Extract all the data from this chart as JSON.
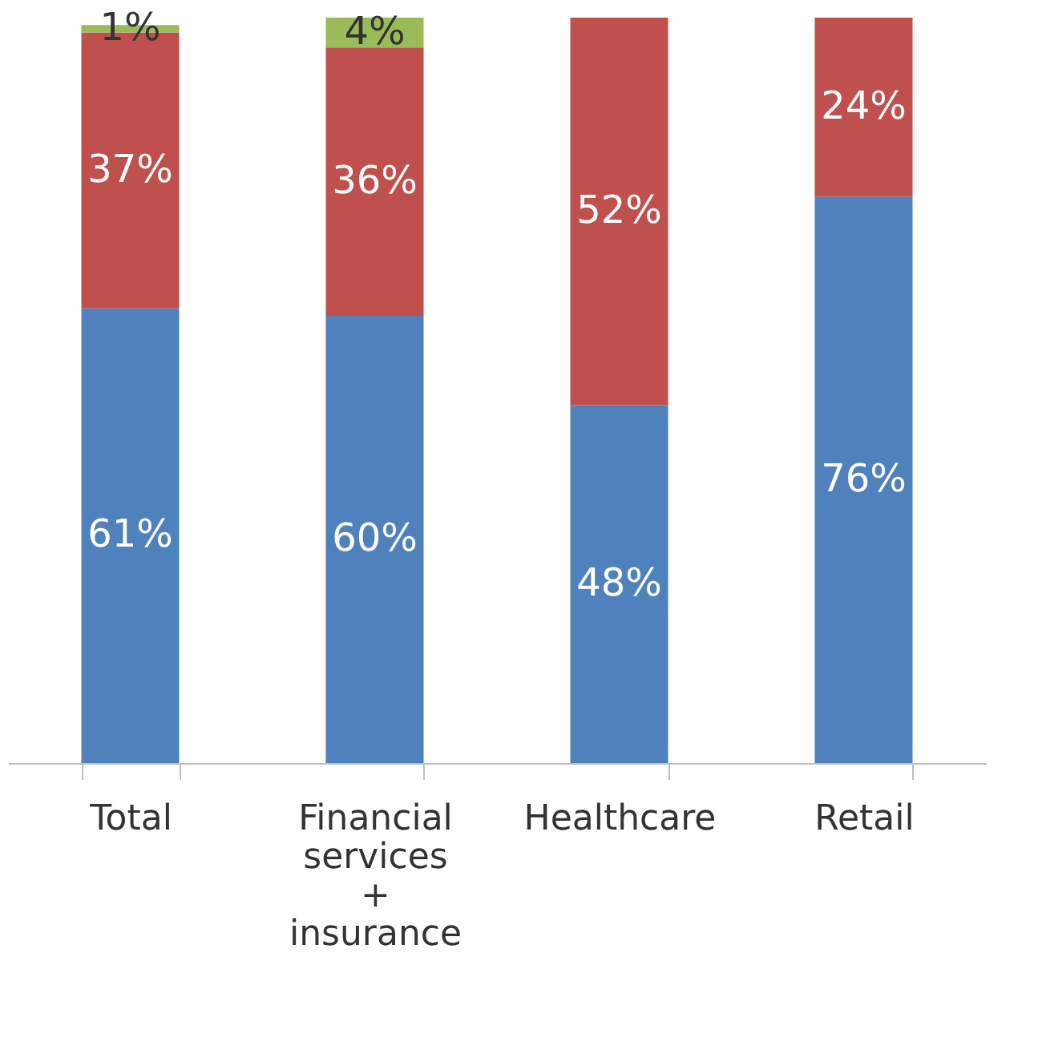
{
  "chart_data": {
    "type": "bar",
    "stacked": true,
    "categories": [
      "Total",
      "Financial services + insurance",
      "Healthcare",
      "Retail"
    ],
    "series": [
      {
        "color": "#4f81bd",
        "values": [
          61,
          60,
          48,
          76
        ],
        "value_labels": [
          "61%",
          "60%",
          "48%",
          "76%"
        ]
      },
      {
        "color": "#c0504d",
        "values": [
          37,
          36,
          52,
          24
        ],
        "value_labels": [
          "37%",
          "36%",
          "52%",
          "24%"
        ]
      },
      {
        "color": "#9bbb59",
        "values": [
          1,
          4,
          null,
          null
        ],
        "value_labels": [
          "1%",
          "4%",
          null,
          null
        ]
      }
    ]
  }
}
